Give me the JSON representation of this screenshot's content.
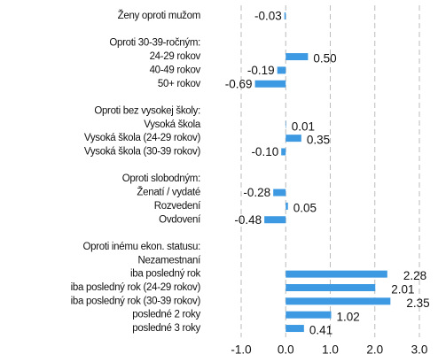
{
  "chart_data": {
    "type": "barh",
    "categories": [
      "Ženy oproti mužom",
      null,
      "Oproti 30-39-ročným:",
      "24-29 rokov",
      "40-49 rokov",
      "50+ rokov",
      null,
      "Oproti bez vysokej školy:",
      "Vysoká škola",
      "Vysoká škola (24-29 rokov)",
      "Vysoká škola (30-39 rokov)",
      null,
      "Oproti slobodným:",
      "Ženatí / vydaté",
      "Rozvedení",
      "Ovdovení",
      null,
      "Oproti inému ekon. statusu:",
      "Nezamestnaní",
      "iba posledný rok",
      "iba posledný rok (24-29 rokov)",
      "iba posledný rok (30-39 rokov)",
      "posledné 2 roky",
      "posledné 3 roky"
    ],
    "values": [
      -0.03,
      null,
      null,
      0.5,
      -0.19,
      -0.69,
      null,
      null,
      0.01,
      0.35,
      -0.1,
      null,
      null,
      -0.28,
      0.05,
      -0.48,
      null,
      null,
      null,
      2.28,
      2.01,
      2.35,
      1.02,
      0.41
    ],
    "value_labels": [
      "-0.03",
      null,
      null,
      "0.50",
      "-0.19",
      "-0.69",
      null,
      null,
      "0.01",
      "0.35",
      "-0.10",
      null,
      null,
      "-0.28",
      "0.05",
      "-0.48",
      null,
      null,
      null,
      "2.28",
      "2.01",
      "2.35",
      "1.02",
      "0.41"
    ],
    "color": "#3d9ae2",
    "xlim": [
      -1,
      3
    ],
    "xticks": [
      {
        "value": -1,
        "label": "-1.0"
      },
      {
        "value": 0,
        "label": "0.0"
      },
      {
        "value": 1,
        "label": "1.0"
      },
      {
        "value": 2,
        "label": "2.0"
      },
      {
        "value": 3,
        "label": "3.0"
      }
    ],
    "grid": true
  }
}
